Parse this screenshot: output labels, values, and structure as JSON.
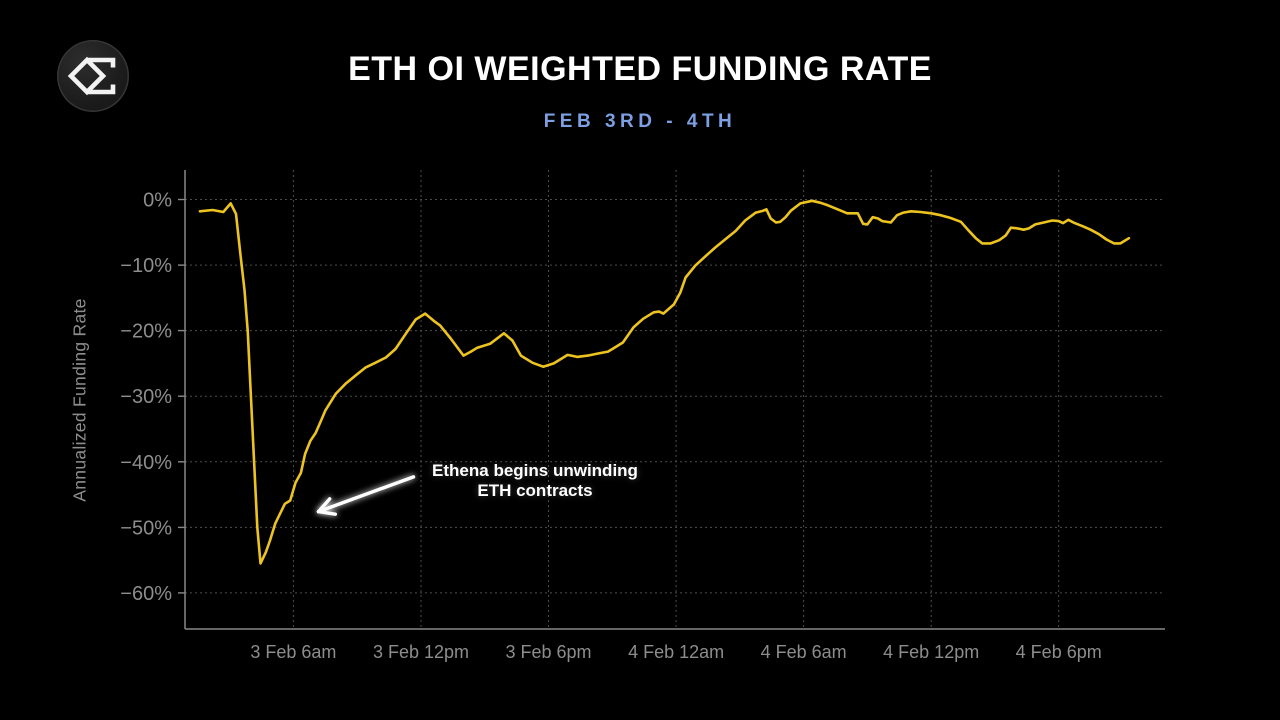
{
  "header": {
    "title": "ETH OI WEIGHTED FUNDING RATE",
    "subtitle": "FEB 3RD - 4TH",
    "logo_icon": "sigma-diamond-logo"
  },
  "chart_data": {
    "type": "line",
    "title": "ETH OI WEIGHTED FUNDING RATE",
    "subtitle": "FEB 3RD - 4TH",
    "ylabel": "Annualized Funding Rate",
    "grid": "dashed",
    "legend": "none",
    "xlim": [
      0.9,
      47.0
    ],
    "ylim": [
      -65.5,
      4.5
    ],
    "x_unit": "hours since 3 Feb 12am",
    "colors": {
      "background": "#000000",
      "line": "#edc41f",
      "grid": "#4d4d4d",
      "spine": "#878787",
      "axis_text": "#8d8d8d",
      "title": "#ffffff",
      "subtitle": "#7d9fe3",
      "annotation": "#ffffff"
    },
    "x_ticks": [
      {
        "t": 6,
        "label": "3 Feb 6am"
      },
      {
        "t": 12,
        "label": "3 Feb 12pm"
      },
      {
        "t": 18,
        "label": "3 Feb 6pm"
      },
      {
        "t": 24,
        "label": "4 Feb 12am"
      },
      {
        "t": 30,
        "label": "4 Feb 6am"
      },
      {
        "t": 36,
        "label": "4 Feb 12pm"
      },
      {
        "t": 42,
        "label": "4 Feb 6pm"
      }
    ],
    "y_ticks": [
      {
        "v": 0,
        "label": "0%"
      },
      {
        "v": -10,
        "label": "−10%"
      },
      {
        "v": -20,
        "label": "−20%"
      },
      {
        "v": -30,
        "label": "−30%"
      },
      {
        "v": -40,
        "label": "−40%"
      },
      {
        "v": -50,
        "label": "−50%"
      },
      {
        "v": -60,
        "label": "−60%"
      }
    ],
    "annotation": {
      "line1": "Ethena begins unwinding",
      "line2": "ETH contracts",
      "arrow_from_t": 11.65,
      "arrow_from_v": -42.3,
      "arrow_to_t": 7.18,
      "arrow_to_v": -47.6
    },
    "series": [
      {
        "name": "ETH OI weighted funding rate (annualized)",
        "points": [
          [
            1.6,
            -1.8
          ],
          [
            2.2,
            -1.6
          ],
          [
            2.7,
            -1.9
          ],
          [
            3.05,
            -0.6
          ],
          [
            3.3,
            -2.2
          ],
          [
            3.5,
            -8.2
          ],
          [
            3.7,
            -13.8
          ],
          [
            3.85,
            -20.0
          ],
          [
            4.0,
            -30.0
          ],
          [
            4.15,
            -40.0
          ],
          [
            4.3,
            -50.0
          ],
          [
            4.45,
            -55.5
          ],
          [
            4.7,
            -53.8
          ],
          [
            4.9,
            -52.0
          ],
          [
            5.15,
            -49.4
          ],
          [
            5.4,
            -47.7
          ],
          [
            5.6,
            -46.4
          ],
          [
            5.85,
            -45.9
          ],
          [
            6.1,
            -43.2
          ],
          [
            6.35,
            -41.7
          ],
          [
            6.55,
            -38.8
          ],
          [
            6.8,
            -36.8
          ],
          [
            7.05,
            -35.6
          ],
          [
            7.3,
            -33.7
          ],
          [
            7.5,
            -32.2
          ],
          [
            8.0,
            -29.6
          ],
          [
            8.45,
            -28.1
          ],
          [
            8.9,
            -26.9
          ],
          [
            9.4,
            -25.6
          ],
          [
            9.85,
            -24.9
          ],
          [
            10.35,
            -24.1
          ],
          [
            10.8,
            -22.8
          ],
          [
            11.3,
            -20.4
          ],
          [
            11.75,
            -18.3
          ],
          [
            12.2,
            -17.4
          ],
          [
            12.6,
            -18.5
          ],
          [
            12.9,
            -19.2
          ],
          [
            13.4,
            -21.2
          ],
          [
            14.0,
            -23.8
          ],
          [
            14.35,
            -23.2
          ],
          [
            14.65,
            -22.6
          ],
          [
            15.25,
            -22.0
          ],
          [
            15.9,
            -20.4
          ],
          [
            16.3,
            -21.5
          ],
          [
            16.7,
            -23.8
          ],
          [
            17.25,
            -24.9
          ],
          [
            17.75,
            -25.5
          ],
          [
            18.25,
            -25.0
          ],
          [
            18.9,
            -23.7
          ],
          [
            19.35,
            -24.0
          ],
          [
            19.85,
            -23.8
          ],
          [
            20.3,
            -23.5
          ],
          [
            20.8,
            -23.2
          ],
          [
            21.05,
            -22.7
          ],
          [
            21.5,
            -21.8
          ],
          [
            22.0,
            -19.5
          ],
          [
            22.45,
            -18.2
          ],
          [
            22.95,
            -17.2
          ],
          [
            23.2,
            -17.1
          ],
          [
            23.4,
            -17.4
          ],
          [
            23.9,
            -16.0
          ],
          [
            24.2,
            -14.2
          ],
          [
            24.45,
            -11.9
          ],
          [
            24.9,
            -10.1
          ],
          [
            25.4,
            -8.6
          ],
          [
            25.85,
            -7.3
          ],
          [
            26.35,
            -6.0
          ],
          [
            26.8,
            -4.8
          ],
          [
            27.25,
            -3.2
          ],
          [
            27.75,
            -2.0
          ],
          [
            28.1,
            -1.7
          ],
          [
            28.25,
            -1.5
          ],
          [
            28.45,
            -2.9
          ],
          [
            28.7,
            -3.5
          ],
          [
            28.9,
            -3.4
          ],
          [
            29.15,
            -2.7
          ],
          [
            29.4,
            -1.7
          ],
          [
            29.85,
            -0.6
          ],
          [
            30.4,
            -0.2
          ],
          [
            30.8,
            -0.5
          ],
          [
            31.15,
            -0.9
          ],
          [
            31.6,
            -1.5
          ],
          [
            32.05,
            -2.1
          ],
          [
            32.55,
            -2.1
          ],
          [
            32.8,
            -3.7
          ],
          [
            33.0,
            -3.8
          ],
          [
            33.25,
            -2.7
          ],
          [
            33.5,
            -2.9
          ],
          [
            33.7,
            -3.3
          ],
          [
            34.1,
            -3.5
          ],
          [
            34.4,
            -2.4
          ],
          [
            34.7,
            -2.0
          ],
          [
            35.05,
            -1.8
          ],
          [
            35.5,
            -1.9
          ],
          [
            36.0,
            -2.1
          ],
          [
            36.45,
            -2.4
          ],
          [
            36.9,
            -2.8
          ],
          [
            37.4,
            -3.4
          ],
          [
            37.75,
            -4.7
          ],
          [
            38.1,
            -5.9
          ],
          [
            38.4,
            -6.7
          ],
          [
            38.8,
            -6.7
          ],
          [
            39.2,
            -6.2
          ],
          [
            39.5,
            -5.5
          ],
          [
            39.75,
            -4.3
          ],
          [
            40.05,
            -4.4
          ],
          [
            40.35,
            -4.6
          ],
          [
            40.6,
            -4.4
          ],
          [
            40.9,
            -3.8
          ],
          [
            41.3,
            -3.5
          ],
          [
            41.7,
            -3.2
          ],
          [
            42.0,
            -3.3
          ],
          [
            42.2,
            -3.6
          ],
          [
            42.45,
            -3.1
          ],
          [
            42.75,
            -3.6
          ],
          [
            43.15,
            -4.1
          ],
          [
            43.5,
            -4.6
          ],
          [
            43.9,
            -5.3
          ],
          [
            44.25,
            -6.1
          ],
          [
            44.6,
            -6.7
          ],
          [
            44.9,
            -6.7
          ],
          [
            45.3,
            -5.9
          ]
        ]
      }
    ]
  }
}
